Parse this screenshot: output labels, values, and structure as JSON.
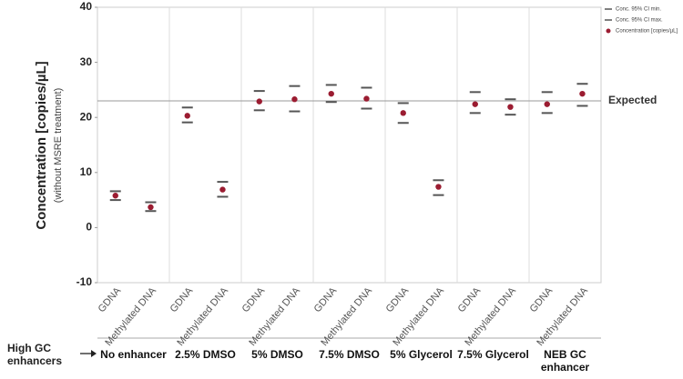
{
  "chart_data": {
    "type": "dot",
    "y_label": "Concentration [copies/µL]",
    "y_sublabel": "(without MSRE treatment)",
    "ylim": [
      -10,
      40
    ],
    "yticks": [
      -10,
      0,
      10,
      20,
      30,
      40
    ],
    "categories": [
      "GDNA",
      "Methylated DNA",
      "GDNA",
      "Methylated DNA",
      "GDNA",
      "Methylated DNA",
      "GDNA",
      "Methylated DNA",
      "GDNA",
      "Methylated DNA",
      "GDNA",
      "Methylated DNA",
      "GDNA",
      "Methylated DNA"
    ],
    "groups": [
      "No enhancer",
      "2.5% DMSO",
      "5% DMSO",
      "7.5% DMSO",
      "5% Glycerol",
      "7.5% Glycerol",
      "NEB GC enhancer"
    ],
    "group_axis_label": "High GC enhancers",
    "series": [
      {
        "name": "Conc. 95% CI min.",
        "color": "#555555",
        "mark": "dash",
        "values": [
          5.0,
          3.0,
          19.1,
          5.6,
          21.3,
          21.1,
          22.8,
          21.6,
          19.0,
          5.9,
          20.8,
          20.5,
          20.8,
          22.1
        ]
      },
      {
        "name": "Conc. 95% CI max.",
        "color": "#555555",
        "mark": "dash",
        "values": [
          6.6,
          4.6,
          21.8,
          8.3,
          24.8,
          25.7,
          25.9,
          25.4,
          22.6,
          8.6,
          24.6,
          23.3,
          24.6,
          26.1
        ]
      },
      {
        "name": "Concentration [copies/µL]",
        "color": "#9b1c31",
        "mark": "dot",
        "values": [
          5.8,
          3.7,
          20.3,
          6.9,
          22.9,
          23.3,
          24.3,
          23.4,
          20.8,
          7.4,
          22.4,
          21.9,
          22.4,
          24.3
        ]
      }
    ],
    "reference": {
      "label": "Expected",
      "value": 23
    },
    "legend": "upper right"
  }
}
